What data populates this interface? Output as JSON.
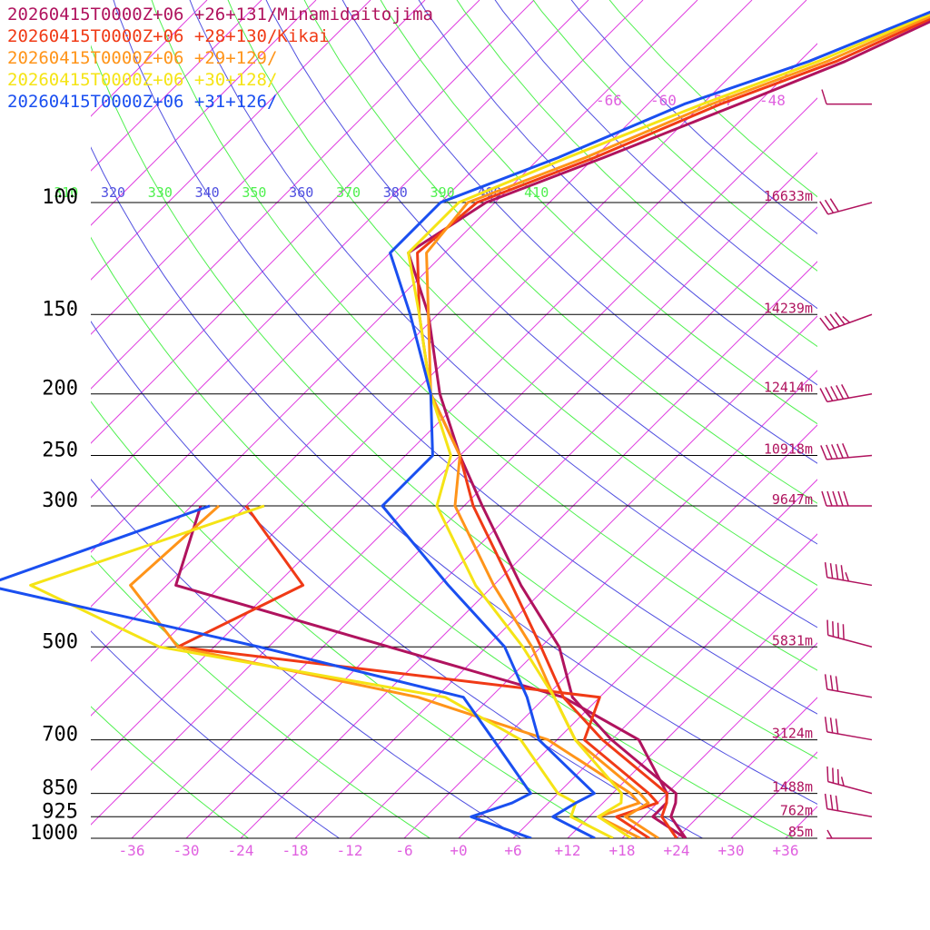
{
  "legend": [
    {
      "label": "20260415T0000Z+06 +26+131/Minamidaitojima",
      "color": "#b0135e"
    },
    {
      "label": "20260415T0000Z+06 +28+130/Kikai",
      "color": "#f03a16"
    },
    {
      "label": "20260415T0000Z+06 +29+129/",
      "color": "#ff9419"
    },
    {
      "label": "20260415T0000Z+06 +30+128/",
      "color": "#f5e416"
    },
    {
      "label": "20260415T0000Z+06 +31+126/",
      "color": "#1a4ff0"
    }
  ],
  "chart_data": {
    "type": "line",
    "subtype": "skew-T log-P sounding",
    "pressure_levels": [
      100,
      150,
      200,
      250,
      300,
      500,
      700,
      850,
      925,
      1000
    ],
    "pressure_labels": [
      "100",
      "150",
      "200",
      "250",
      "300",
      "500",
      "700",
      "850",
      "925",
      "1000"
    ],
    "height_labels": [
      {
        "p": 100,
        "label": "16633m"
      },
      {
        "p": 150,
        "label": "14239m"
      },
      {
        "p": 200,
        "label": "12414m"
      },
      {
        "p": 250,
        "label": "10918m"
      },
      {
        "p": 300,
        "label": "9647m"
      },
      {
        "p": 500,
        "label": "5831m"
      },
      {
        "p": 700,
        "label": "3124m"
      },
      {
        "p": 850,
        "label": "1488m"
      },
      {
        "p": 925,
        "label": "762m"
      },
      {
        "p": 1000,
        "label": "85m"
      }
    ],
    "x_ticks": [
      -36,
      -30,
      -24,
      -18,
      -12,
      -6,
      0,
      6,
      12,
      18,
      24,
      30,
      36
    ],
    "x_tick_labels": [
      "-36",
      "-30",
      "-24",
      "-18",
      "-12",
      "-6",
      "+0",
      "+6",
      "+12",
      "+18",
      "+24",
      "+30",
      "+36"
    ],
    "top_isotherm_labels": [
      "-66",
      "-60",
      "-54",
      "-48"
    ],
    "theta_labels": [
      "310",
      "320",
      "330",
      "340",
      "350",
      "360",
      "370",
      "380",
      "390",
      "400",
      "410"
    ],
    "colors": {
      "isotherm": "#e040e0",
      "isotherm_label": "#e060e0",
      "theta_green": "#4ef04e",
      "theta_blue": "#5050e0",
      "pressure_line": "#000000",
      "height_label": "#b0135e",
      "barb": "#b0135e"
    },
    "series": [
      {
        "name": "20260415T0000Z+06 +26+131/Minamidaitojima",
        "color": "#b0135e",
        "temperature": [
          [
            40,
            -29
          ],
          [
            60,
            -43
          ],
          [
            70,
            -50
          ],
          [
            85,
            -59
          ],
          [
            100,
            -67
          ],
          [
            120,
            -70
          ],
          [
            150,
            -61
          ],
          [
            200,
            -51
          ],
          [
            250,
            -42
          ],
          [
            300,
            -34
          ],
          [
            400,
            -21
          ],
          [
            500,
            -10
          ],
          [
            600,
            -3
          ],
          [
            700,
            6
          ],
          [
            850,
            19
          ],
          [
            880,
            20
          ],
          [
            925,
            21
          ],
          [
            1000,
            25
          ]
        ],
        "dewpoint": [
          [
            300,
            -65
          ],
          [
            400,
            -59
          ],
          [
            600,
            -4
          ],
          [
            700,
            9
          ],
          [
            850,
            18
          ],
          [
            880,
            19
          ],
          [
            925,
            19
          ],
          [
            1000,
            25
          ]
        ]
      },
      {
        "name": "20260415T0000Z+06 +28+130/Kikai",
        "color": "#f03a16",
        "temperature": [
          [
            40,
            -29
          ],
          [
            60,
            -44
          ],
          [
            70,
            -52
          ],
          [
            85,
            -60
          ],
          [
            100,
            -68
          ],
          [
            120,
            -69
          ],
          [
            150,
            -62
          ],
          [
            200,
            -52
          ],
          [
            250,
            -42
          ],
          [
            300,
            -35
          ],
          [
            400,
            -22
          ],
          [
            500,
            -12
          ],
          [
            600,
            -4
          ],
          [
            700,
            5
          ],
          [
            850,
            18
          ],
          [
            880,
            19
          ],
          [
            925,
            20
          ],
          [
            1000,
            24
          ]
        ],
        "dewpoint": [
          [
            300,
            -60
          ],
          [
            400,
            -45
          ],
          [
            500,
            -52
          ],
          [
            600,
            0
          ],
          [
            700,
            3
          ],
          [
            850,
            16
          ],
          [
            880,
            18
          ],
          [
            925,
            15
          ],
          [
            1000,
            21
          ]
        ]
      },
      {
        "name": "20260415T0000Z+06 +29+129/",
        "color": "#ff9419",
        "temperature": [
          [
            40,
            -29
          ],
          [
            60,
            -45
          ],
          [
            70,
            -53
          ],
          [
            85,
            -61
          ],
          [
            100,
            -69
          ],
          [
            120,
            -68
          ],
          [
            150,
            -61
          ],
          [
            200,
            -52
          ],
          [
            250,
            -42
          ],
          [
            300,
            -37
          ],
          [
            400,
            -24
          ],
          [
            500,
            -13
          ],
          [
            600,
            -5
          ],
          [
            700,
            2
          ],
          [
            850,
            15
          ],
          [
            880,
            17
          ],
          [
            925,
            16
          ],
          [
            1000,
            22
          ]
        ],
        "dewpoint": [
          [
            300,
            -63
          ],
          [
            400,
            -64
          ],
          [
            500,
            -52
          ],
          [
            600,
            -20
          ],
          [
            700,
            -1
          ],
          [
            850,
            14
          ],
          [
            880,
            16
          ],
          [
            925,
            13
          ],
          [
            1000,
            20
          ]
        ]
      },
      {
        "name": "20260415T0000Z+06 +30+128/",
        "color": "#f5e416",
        "temperature": [
          [
            40,
            -29
          ],
          [
            60,
            -46
          ],
          [
            70,
            -54
          ],
          [
            85,
            -63
          ],
          [
            100,
            -70
          ],
          [
            120,
            -70
          ],
          [
            150,
            -62
          ],
          [
            200,
            -52
          ],
          [
            250,
            -43
          ],
          [
            300,
            -39
          ],
          [
            400,
            -26
          ],
          [
            500,
            -14
          ],
          [
            600,
            -5
          ],
          [
            700,
            2
          ],
          [
            850,
            13
          ],
          [
            880,
            14
          ],
          [
            925,
            13
          ],
          [
            1000,
            19
          ]
        ],
        "dewpoint": [
          [
            300,
            -58
          ],
          [
            400,
            -75
          ],
          [
            500,
            -54
          ],
          [
            600,
            -17
          ],
          [
            700,
            -4
          ],
          [
            850,
            6
          ],
          [
            880,
            9
          ],
          [
            925,
            10
          ],
          [
            1000,
            17
          ]
        ]
      },
      {
        "name": "20260415T0000Z+06 +31+126/",
        "color": "#1a4ff0",
        "temperature": [
          [
            40,
            -29
          ],
          [
            60,
            -47
          ],
          [
            70,
            -56
          ],
          [
            85,
            -64
          ],
          [
            100,
            -72
          ],
          [
            120,
            -72
          ],
          [
            150,
            -63
          ],
          [
            200,
            -52
          ],
          [
            250,
            -45
          ],
          [
            300,
            -45
          ],
          [
            400,
            -29
          ],
          [
            500,
            -16
          ],
          [
            600,
            -8
          ],
          [
            700,
            -2
          ],
          [
            850,
            10
          ],
          [
            880,
            9
          ],
          [
            925,
            8
          ],
          [
            1000,
            15
          ]
        ],
        "dewpoint": [
          [
            300,
            -64
          ],
          [
            400,
            -80
          ],
          [
            500,
            -43
          ],
          [
            600,
            -15
          ],
          [
            700,
            -7
          ],
          [
            850,
            3
          ],
          [
            880,
            2
          ],
          [
            925,
            -1
          ],
          [
            1000,
            8
          ]
        ]
      }
    ],
    "wind_barbs": [
      {
        "p": 40,
        "direction": 345,
        "speed_kt": 15
      },
      {
        "p": 70,
        "direction": 270,
        "speed_kt": 10
      },
      {
        "p": 100,
        "direction": 255,
        "speed_kt": 30
      },
      {
        "p": 150,
        "direction": 250,
        "speed_kt": 45
      },
      {
        "p": 200,
        "direction": 260,
        "speed_kt": 50
      },
      {
        "p": 250,
        "direction": 265,
        "speed_kt": 50
      },
      {
        "p": 300,
        "direction": 270,
        "speed_kt": 50
      },
      {
        "p": 400,
        "direction": 280,
        "speed_kt": 45
      },
      {
        "p": 500,
        "direction": 285,
        "speed_kt": 40
      },
      {
        "p": 600,
        "direction": 280,
        "speed_kt": 30
      },
      {
        "p": 700,
        "direction": 280,
        "speed_kt": 30
      },
      {
        "p": 850,
        "direction": 285,
        "speed_kt": 35
      },
      {
        "p": 925,
        "direction": 280,
        "speed_kt": 30
      },
      {
        "p": 1000,
        "direction": 270,
        "speed_kt": 5
      }
    ]
  }
}
